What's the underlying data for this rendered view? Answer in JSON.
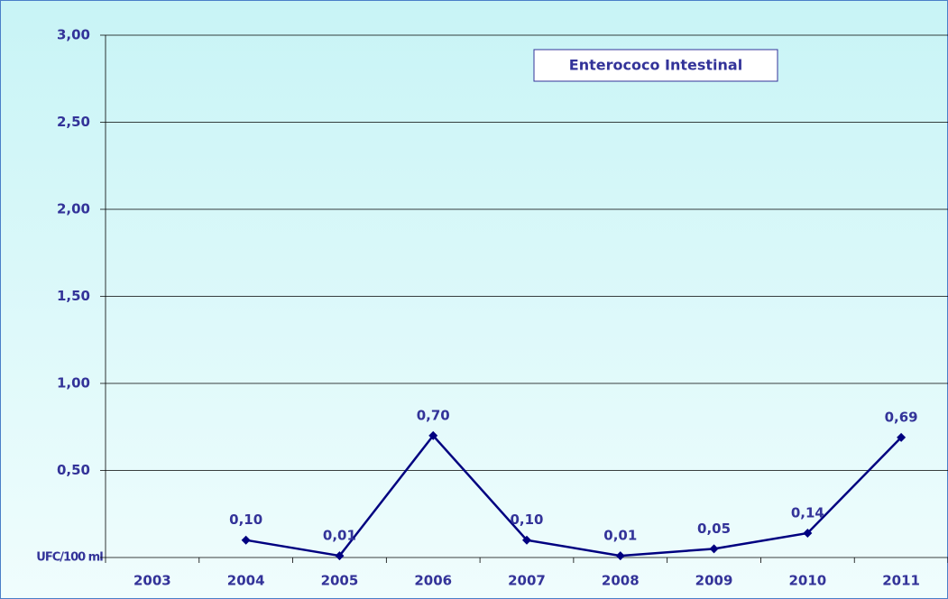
{
  "chart_data": {
    "type": "line",
    "categories": [
      "2003",
      "2004",
      "2005",
      "2006",
      "2007",
      "2008",
      "2009",
      "2010",
      "2011"
    ],
    "series": [
      {
        "name": "Enterococo Intestinal",
        "color": "#000080",
        "values": [
          null,
          0.1,
          0.01,
          0.7,
          0.1,
          0.01,
          0.05,
          0.14,
          0.69
        ],
        "value_labels": [
          null,
          "0,10",
          "0,01",
          "0,70",
          "0,10",
          "0,01",
          "0,05",
          "0,14",
          "0,69"
        ]
      }
    ],
    "y_label": "UFC/100 ml",
    "ylim": [
      0,
      3
    ],
    "yticks": [
      {
        "value": 0.5,
        "label": "0,50"
      },
      {
        "value": 1,
        "label": "1,00"
      },
      {
        "value": 1.5,
        "label": "1,50"
      },
      {
        "value": 2,
        "label": "2,00"
      },
      {
        "value": 2.5,
        "label": "2,50"
      },
      {
        "value": 3,
        "label": "3,00"
      }
    ],
    "grid": true
  }
}
